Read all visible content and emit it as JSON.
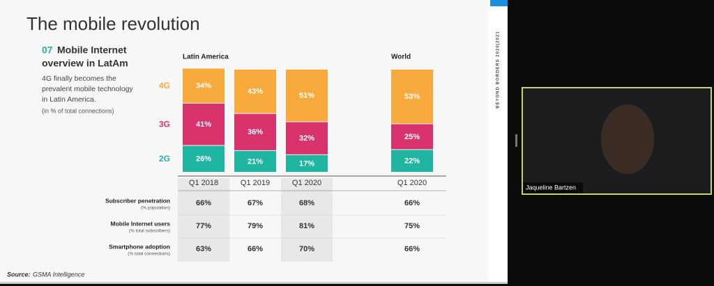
{
  "slide": {
    "title": "The mobile revolution",
    "section_number": "07",
    "section_title": [
      "Mobile Internet",
      "overview in LatAm"
    ],
    "description": [
      "4G finally becomes the",
      "prevalent mobile technology",
      "in Latin America."
    ],
    "note": "(in % of total connections)",
    "source_label": "Source:",
    "source": "GSMA Intelligence",
    "side_text": "BEYOND BORDERS 2020|2021"
  },
  "chart_data": {
    "type": "bar",
    "stacked": true,
    "groups": [
      {
        "label": "Latin America",
        "count": 3
      },
      {
        "label": "World",
        "count": 1
      }
    ],
    "categories": [
      "Q1 2018",
      "Q1 2019",
      "Q1 2020",
      "Q1 2020"
    ],
    "ylim": [
      0,
      100
    ],
    "series": [
      {
        "name": "2G",
        "color": "#1fb5a1",
        "values": [
          26,
          21,
          17,
          22
        ],
        "value_labels": [
          "26%",
          "21%",
          "17%",
          "22%"
        ]
      },
      {
        "name": "3G",
        "color": "#d9336d",
        "values": [
          41,
          36,
          32,
          25
        ],
        "value_labels": [
          "41%",
          "36%",
          "32%",
          "25%"
        ]
      },
      {
        "name": "4G",
        "color": "#f8aa3c",
        "values": [
          34,
          43,
          51,
          53
        ],
        "value_labels": [
          "34%",
          "43%",
          "51%",
          "53%"
        ]
      }
    ]
  },
  "table": {
    "rows": [
      {
        "label": "Subscriber penetration",
        "sublabel": "(% population)",
        "cells": [
          "66%",
          "67%",
          "68%",
          "66%"
        ]
      },
      {
        "label": "Mobile Internet users",
        "sublabel": "(% total subscribers)",
        "cells": [
          "77%",
          "79%",
          "81%",
          "75%"
        ]
      },
      {
        "label": "Smartphone adoption",
        "sublabel": "(% total connections)",
        "cells": [
          "63%",
          "66%",
          "70%",
          "66%"
        ]
      }
    ]
  },
  "video": {
    "participant": "Jaqueline Bartzen"
  }
}
